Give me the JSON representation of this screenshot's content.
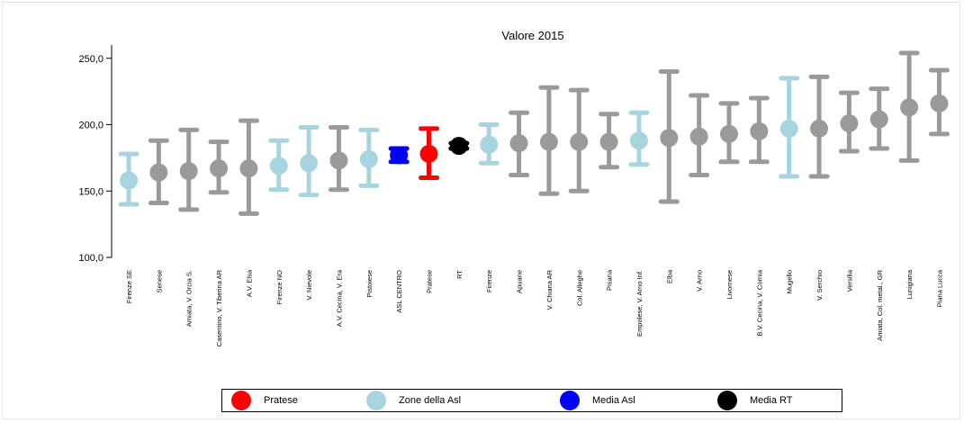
{
  "chart_data": {
    "type": "scatter",
    "title": "Valore 2015",
    "ylim": [
      100,
      260
    ],
    "y_ticks": [
      "100,0",
      "150,0",
      "200,0",
      "250,0"
    ],
    "grid": false,
    "legend_position": "bottom",
    "colors": {
      "zone": "#a8d4e0",
      "other": "#9a9a9a",
      "pratese": "#ff0000",
      "asl": "#0000ff",
      "rt": "#000000"
    },
    "points": [
      {
        "label": "Firenze SE",
        "value": 158,
        "low": 140,
        "high": 178,
        "group": "zone"
      },
      {
        "label": "Senese",
        "value": 164,
        "low": 141,
        "high": 188,
        "group": "other"
      },
      {
        "label": "Amiata, V. Orcia S.",
        "value": 165,
        "low": 136,
        "high": 196,
        "group": "other"
      },
      {
        "label": "Casentino, V. Tiberina AR",
        "value": 167,
        "low": 149,
        "high": 187,
        "group": "other"
      },
      {
        "label": "A.V. Elsa",
        "value": 167,
        "low": 133,
        "high": 203,
        "group": "other"
      },
      {
        "label": "Firenze NO",
        "value": 169,
        "low": 151,
        "high": 188,
        "group": "zone"
      },
      {
        "label": "V. Nievole",
        "value": 171,
        "low": 147,
        "high": 198,
        "group": "zone"
      },
      {
        "label": "A.V. Cecina, V. Era",
        "value": 173,
        "low": 151,
        "high": 198,
        "group": "other"
      },
      {
        "label": "Pistoiese",
        "value": 174,
        "low": 154,
        "high": 196,
        "group": "zone"
      },
      {
        "label": "ASL CENTRO",
        "value": 177,
        "low": 172,
        "high": 182,
        "group": "asl"
      },
      {
        "label": "Pratese",
        "value": 178,
        "low": 160,
        "high": 197,
        "group": "pratese"
      },
      {
        "label": "RT",
        "value": 184,
        "low": 182,
        "high": 186,
        "group": "rt"
      },
      {
        "label": "Firenze",
        "value": 185,
        "low": 171,
        "high": 200,
        "group": "zone"
      },
      {
        "label": "Apuane",
        "value": 186,
        "low": 162,
        "high": 209,
        "group": "other"
      },
      {
        "label": "V. Chiana AR",
        "value": 187,
        "low": 148,
        "high": 228,
        "group": "other"
      },
      {
        "label": "Col. Alleghe",
        "value": 187,
        "low": 150,
        "high": 226,
        "group": "other"
      },
      {
        "label": "Pisana",
        "value": 187,
        "low": 168,
        "high": 208,
        "group": "other"
      },
      {
        "label": "Empolese, V. Arno Inf.",
        "value": 188,
        "low": 170,
        "high": 209,
        "group": "zone"
      },
      {
        "label": "Elba",
        "value": 190,
        "low": 142,
        "high": 240,
        "group": "other"
      },
      {
        "label": "V. Arno",
        "value": 191,
        "low": 162,
        "high": 222,
        "group": "other"
      },
      {
        "label": "Livornese",
        "value": 193,
        "low": 172,
        "high": 216,
        "group": "other"
      },
      {
        "label": "B.V. Cecina, V. Cornia",
        "value": 195,
        "low": 172,
        "high": 220,
        "group": "other"
      },
      {
        "label": "Mugello",
        "value": 197,
        "low": 161,
        "high": 235,
        "group": "zone"
      },
      {
        "label": "V. Serchio",
        "value": 197,
        "low": 161,
        "high": 236,
        "group": "other"
      },
      {
        "label": "Versilia",
        "value": 201,
        "low": 180,
        "high": 224,
        "group": "other"
      },
      {
        "label": "Amiata, Col. metal., GR",
        "value": 204,
        "low": 182,
        "high": 227,
        "group": "other"
      },
      {
        "label": "Lunigiana",
        "value": 213,
        "low": 173,
        "high": 254,
        "group": "other"
      },
      {
        "label": "Piana Lucca",
        "value": 216,
        "low": 193,
        "high": 241,
        "group": "other"
      }
    ]
  },
  "legend": {
    "items": [
      {
        "label": "Pratese",
        "color": "#ff0000"
      },
      {
        "label": "Zone della Asl",
        "color": "#a8d4e0"
      },
      {
        "label": "Media Asl",
        "color": "#0000ff"
      },
      {
        "label": "Media RT",
        "color": "#000000"
      }
    ]
  }
}
